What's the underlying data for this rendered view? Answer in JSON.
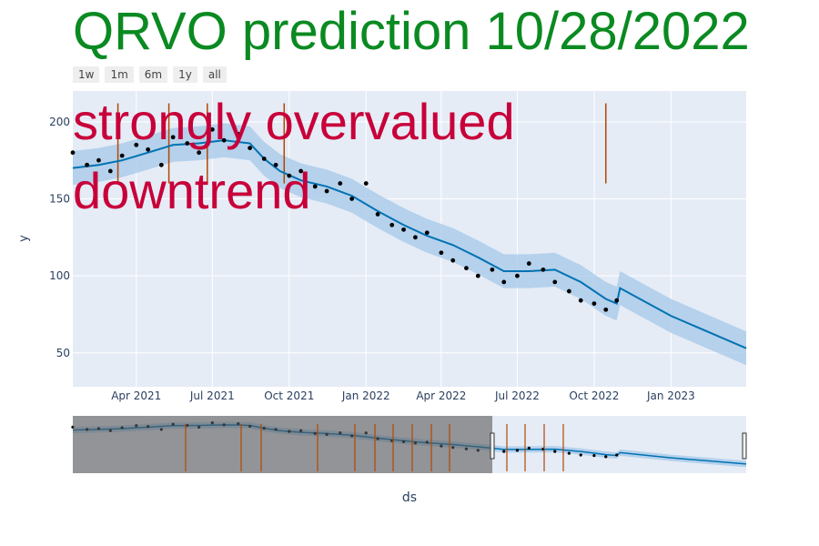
{
  "header": {
    "title": "QRVO prediction 10/28/2022"
  },
  "range_selector": [
    "1w",
    "1m",
    "6m",
    "1y",
    "all"
  ],
  "annotations": {
    "valuation": "strongly overvalued",
    "trend": "downtrend"
  },
  "colors": {
    "plot_bg": "#e5ecf6",
    "band": "#a9cbea",
    "forecast": "#0072b2",
    "points": "#000000",
    "changepoints": "#b34700",
    "title": "#0a8a21",
    "annotation": "#c8003a"
  },
  "chart_data": {
    "type": "line",
    "xlabel": "ds",
    "ylabel": "y",
    "x_ticks": [
      "Apr 2021",
      "Jul 2021",
      "Oct 2021",
      "Jan 2022",
      "Apr 2022",
      "Jul 2022",
      "Oct 2022",
      "Jan 2023"
    ],
    "y_ticks": [
      50,
      100,
      150,
      200
    ],
    "xlim": [
      "2021-01-15",
      "2023-04-01"
    ],
    "ylim": [
      28,
      220
    ],
    "forecast": {
      "x": [
        "2021-01-15",
        "2021-02-15",
        "2021-03-15",
        "2021-04-15",
        "2021-05-15",
        "2021-06-15",
        "2021-07-15",
        "2021-08-15",
        "2021-09-01",
        "2021-09-20",
        "2021-10-15",
        "2021-11-15",
        "2021-12-15",
        "2022-01-15",
        "2022-02-15",
        "2022-03-15",
        "2022-04-15",
        "2022-05-15",
        "2022-06-15",
        "2022-07-15",
        "2022-08-15",
        "2022-09-15",
        "2022-10-15",
        "2022-10-28",
        "2022-11-01",
        "2023-01-01",
        "2023-04-01"
      ],
      "yhat": [
        170,
        172,
        175,
        180,
        185,
        186,
        188,
        186,
        176,
        168,
        162,
        158,
        152,
        142,
        133,
        126,
        120,
        112,
        103,
        103,
        104,
        96,
        85,
        82,
        92,
        74,
        53
      ],
      "band": 11
    },
    "actual": {
      "x": [
        "2021-01-15",
        "2021-02-01",
        "2021-02-15",
        "2021-03-01",
        "2021-03-15",
        "2021-04-01",
        "2021-04-15",
        "2021-05-01",
        "2021-05-15",
        "2021-06-01",
        "2021-06-15",
        "2021-07-01",
        "2021-07-15",
        "2021-08-01",
        "2021-08-15",
        "2021-09-01",
        "2021-09-15",
        "2021-10-01",
        "2021-10-15",
        "2021-11-01",
        "2021-11-15",
        "2021-12-01",
        "2021-12-15",
        "2022-01-01",
        "2022-01-15",
        "2022-02-01",
        "2022-02-15",
        "2022-03-01",
        "2022-03-15",
        "2022-04-01",
        "2022-04-15",
        "2022-05-01",
        "2022-05-15",
        "2022-06-01",
        "2022-06-15",
        "2022-07-01",
        "2022-07-15",
        "2022-08-01",
        "2022-08-15",
        "2022-09-01",
        "2022-09-15",
        "2022-10-01",
        "2022-10-15",
        "2022-10-28"
      ],
      "y": [
        180,
        172,
        175,
        168,
        178,
        185,
        182,
        172,
        190,
        186,
        180,
        195,
        188,
        192,
        183,
        176,
        172,
        165,
        168,
        158,
        155,
        160,
        150,
        160,
        140,
        133,
        130,
        125,
        128,
        115,
        110,
        105,
        100,
        104,
        96,
        100,
        108,
        104,
        96,
        90,
        84,
        82,
        78,
        84
      ]
    },
    "changepoints": [
      "2021-03-10",
      "2021-05-10",
      "2021-06-25",
      "2021-09-25",
      "2022-10-15"
    ]
  }
}
